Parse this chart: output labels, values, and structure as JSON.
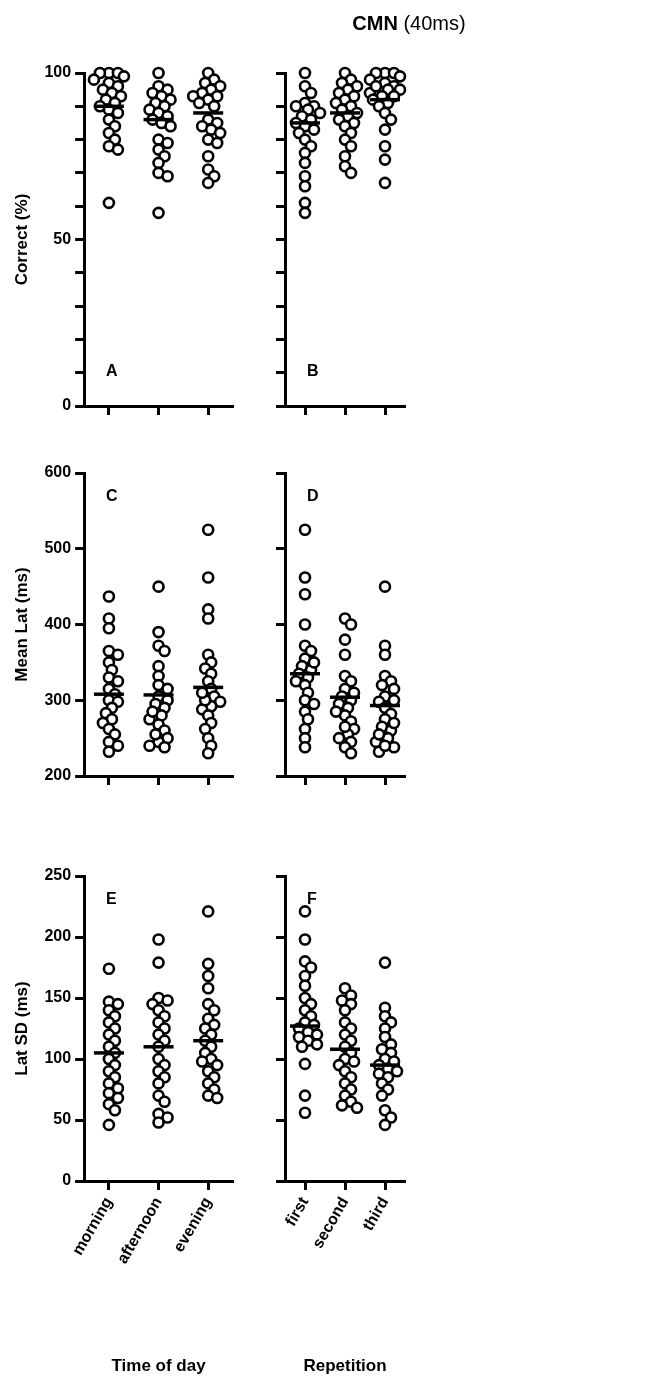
{
  "chart_data": [
    {
      "type": "scatter",
      "ylabel": "Correct (%)",
      "annotations": [
        "A"
      ],
      "categories": [
        "morning",
        "afternoon",
        "evening"
      ],
      "ylim": [
        0,
        100
      ],
      "yticks": [
        0,
        {
          "value": 10,
          "label": null
        },
        {
          "value": 20,
          "label": null
        },
        {
          "value": 30,
          "label": null
        },
        {
          "value": 40,
          "label": null
        },
        50,
        {
          "value": 60,
          "label": null
        },
        {
          "value": 70,
          "label": null
        },
        {
          "value": 80,
          "label": null
        },
        {
          "value": 90,
          "label": null
        },
        100
      ],
      "tick_labels": "y",
      "marker": "circle",
      "legend": false,
      "grid": false,
      "series": [
        {
          "color": "#000000",
          "x": [
            "morning",
            "morning",
            "morning",
            "morning",
            "morning",
            "morning",
            "morning",
            "morning",
            "morning",
            "morning",
            "morning",
            "morning",
            "morning",
            "morning",
            "morning",
            "morning",
            "morning",
            "morning",
            "morning",
            "morning",
            "morning",
            "morning",
            "afternoon",
            "afternoon",
            "afternoon",
            "afternoon",
            "afternoon",
            "afternoon",
            "afternoon",
            "afternoon",
            "afternoon",
            "afternoon",
            "afternoon",
            "afternoon",
            "afternoon",
            "afternoon",
            "afternoon",
            "afternoon",
            "afternoon",
            "afternoon",
            "afternoon",
            "afternoon",
            "afternoon",
            "afternoon",
            "evening",
            "evening",
            "evening",
            "evening",
            "evening",
            "evening",
            "evening",
            "evening",
            "evening",
            "evening",
            "evening",
            "evening",
            "evening",
            "evening",
            "evening",
            "evening",
            "evening",
            "evening",
            "evening",
            "evening",
            "evening",
            "evening"
          ],
          "values": [
            100,
            100,
            100,
            99,
            98,
            97,
            96,
            95,
            94,
            93,
            92,
            91,
            90,
            89,
            88,
            86,
            84,
            82,
            80,
            78,
            77,
            61,
            100,
            96,
            95,
            94,
            93,
            92,
            91,
            90,
            89,
            88,
            87,
            86,
            85,
            84,
            80,
            79,
            77,
            75,
            73,
            70,
            69,
            58,
            100,
            98,
            97,
            96,
            95,
            94,
            93,
            93,
            92,
            91,
            90,
            86,
            85,
            84,
            83,
            82,
            80,
            79,
            75,
            71,
            69,
            67
          ]
        },
        {
          "type": "box",
          "color": "#000000",
          "boxes": [
            {
              "low": 90,
              "q1": 90,
              "median": 90,
              "q3": 90,
              "high": 90
            },
            {
              "low": 86,
              "q1": 86,
              "median": 86,
              "q3": 86,
              "high": 86
            },
            {
              "low": 88,
              "q1": 88,
              "median": 88,
              "q3": 88,
              "high": 88
            }
          ]
        }
      ]
    },
    {
      "type": "scatter",
      "title": "CMN (40ms)",
      "annotations": [
        "B"
      ],
      "categories": [
        "first",
        "second",
        "third"
      ],
      "ylim": [
        0,
        100
      ],
      "yticks": [
        0,
        {
          "value": 10,
          "label": null
        },
        {
          "value": 20,
          "label": null
        },
        {
          "value": 30,
          "label": null
        },
        {
          "value": 40,
          "label": null
        },
        50,
        {
          "value": 60,
          "label": null
        },
        {
          "value": 70,
          "label": null
        },
        {
          "value": 80,
          "label": null
        },
        {
          "value": 90,
          "label": null
        },
        100
      ],
      "tick_labels": false,
      "marker": "circle",
      "legend": false,
      "grid": false,
      "series": [
        {
          "color": "#000000",
          "x": [
            "first",
            "first",
            "first",
            "first",
            "first",
            "first",
            "first",
            "first",
            "first",
            "first",
            "first",
            "first",
            "first",
            "first",
            "first",
            "first",
            "first",
            "first",
            "first",
            "first",
            "first",
            "first",
            "second",
            "second",
            "second",
            "second",
            "second",
            "second",
            "second",
            "second",
            "second",
            "second",
            "second",
            "second",
            "second",
            "second",
            "second",
            "second",
            "second",
            "second",
            "second",
            "second",
            "second",
            "second",
            "third",
            "third",
            "third",
            "third",
            "third",
            "third",
            "third",
            "third",
            "third",
            "third",
            "third",
            "third",
            "third",
            "third",
            "third",
            "third",
            "third",
            "third",
            "third",
            "third",
            "third",
            "third"
          ],
          "values": [
            100,
            96,
            94,
            91,
            90,
            89,
            88,
            87,
            86,
            85,
            84,
            83,
            82,
            80,
            78,
            76,
            73,
            69,
            66,
            61,
            58,
            90,
            100,
            98,
            97,
            96,
            95,
            94,
            93,
            92,
            91,
            90,
            89,
            88,
            87,
            86,
            85,
            84,
            82,
            80,
            78,
            75,
            72,
            70,
            100,
            100,
            100,
            99,
            98,
            97,
            96,
            95,
            94,
            93,
            92,
            91,
            90,
            88,
            86,
            83,
            78,
            74,
            67,
            96,
            95,
            93
          ]
        },
        {
          "type": "box",
          "color": "#000000",
          "boxes": [
            {
              "low": 85,
              "q1": 85,
              "median": 85,
              "q3": 85,
              "high": 85
            },
            {
              "low": 88,
              "q1": 88,
              "median": 88,
              "q3": 88,
              "high": 88
            },
            {
              "low": 92,
              "q1": 92,
              "median": 92,
              "q3": 92,
              "high": 92
            }
          ]
        }
      ]
    },
    {
      "type": "scatter",
      "ylabel": "Mean Lat (ms)",
      "annotations": [
        "C"
      ],
      "categories": [
        "morning",
        "afternoon",
        "evening"
      ],
      "ylim": [
        200,
        600
      ],
      "yticks": [
        200,
        300,
        400,
        500,
        600
      ],
      "tick_labels": "y",
      "marker": "circle",
      "legend": false,
      "grid": false,
      "series": [
        {
          "color": "#000000",
          "x": [
            "morning",
            "morning",
            "morning",
            "morning",
            "morning",
            "morning",
            "morning",
            "morning",
            "morning",
            "morning",
            "morning",
            "morning",
            "morning",
            "morning",
            "morning",
            "morning",
            "morning",
            "morning",
            "morning",
            "morning",
            "morning",
            "morning",
            "afternoon",
            "afternoon",
            "afternoon",
            "afternoon",
            "afternoon",
            "afternoon",
            "afternoon",
            "afternoon",
            "afternoon",
            "afternoon",
            "afternoon",
            "afternoon",
            "afternoon",
            "afternoon",
            "afternoon",
            "afternoon",
            "afternoon",
            "afternoon",
            "afternoon",
            "afternoon",
            "afternoon",
            "afternoon",
            "evening",
            "evening",
            "evening",
            "evening",
            "evening",
            "evening",
            "evening",
            "evening",
            "evening",
            "evening",
            "evening",
            "evening",
            "evening",
            "evening",
            "evening",
            "evening",
            "evening",
            "evening",
            "evening",
            "evening",
            "evening",
            "evening"
          ],
          "values": [
            437,
            408,
            395,
            365,
            360,
            350,
            340,
            330,
            325,
            315,
            308,
            300,
            298,
            290,
            283,
            275,
            270,
            262,
            255,
            245,
            240,
            232,
            450,
            390,
            372,
            365,
            345,
            332,
            320,
            315,
            305,
            300,
            295,
            290,
            280,
            275,
            268,
            260,
            250,
            245,
            240,
            238,
            255,
            285,
            525,
            462,
            420,
            408,
            360,
            350,
            342,
            335,
            325,
            315,
            305,
            298,
            292,
            288,
            280,
            270,
            262,
            250,
            240,
            230,
            300,
            310
          ]
        },
        {
          "type": "box",
          "color": "#000000",
          "boxes": [
            {
              "low": 308,
              "q1": 308,
              "median": 308,
              "q3": 308,
              "high": 308
            },
            {
              "low": 307,
              "q1": 307,
              "median": 307,
              "q3": 307,
              "high": 307
            },
            {
              "low": 317,
              "q1": 317,
              "median": 317,
              "q3": 317,
              "high": 317
            }
          ]
        }
      ]
    },
    {
      "type": "scatter",
      "annotations": [
        "D"
      ],
      "categories": [
        "first",
        "second",
        "third"
      ],
      "ylim": [
        200,
        600
      ],
      "yticks": [
        200,
        300,
        400,
        500,
        600
      ],
      "tick_labels": false,
      "marker": "circle",
      "legend": false,
      "grid": false,
      "series": [
        {
          "color": "#000000",
          "x": [
            "first",
            "first",
            "first",
            "first",
            "first",
            "first",
            "first",
            "first",
            "first",
            "first",
            "first",
            "first",
            "first",
            "first",
            "first",
            "first",
            "first",
            "first",
            "first",
            "first",
            "first",
            "first",
            "second",
            "second",
            "second",
            "second",
            "second",
            "second",
            "second",
            "second",
            "second",
            "second",
            "second",
            "second",
            "second",
            "second",
            "second",
            "second",
            "second",
            "second",
            "second",
            "second",
            "second",
            "second",
            "third",
            "third",
            "third",
            "third",
            "third",
            "third",
            "third",
            "third",
            "third",
            "third",
            "third",
            "third",
            "third",
            "third",
            "third",
            "third",
            "third",
            "third",
            "third",
            "third",
            "third",
            "third"
          ],
          "values": [
            525,
            462,
            440,
            400,
            372,
            365,
            355,
            345,
            340,
            335,
            330,
            325,
            320,
            310,
            300,
            295,
            285,
            275,
            262,
            250,
            238,
            350,
            408,
            400,
            380,
            360,
            332,
            325,
            315,
            305,
            300,
            295,
            290,
            280,
            272,
            262,
            255,
            245,
            238,
            230,
            310,
            285,
            265,
            250,
            450,
            372,
            360,
            332,
            325,
            315,
            305,
            298,
            290,
            282,
            275,
            265,
            260,
            250,
            245,
            238,
            232,
            320,
            300,
            270,
            255,
            240
          ]
        },
        {
          "type": "box",
          "color": "#000000",
          "boxes": [
            {
              "low": 335,
              "q1": 335,
              "median": 335,
              "q3": 335,
              "high": 335
            },
            {
              "low": 304,
              "q1": 304,
              "median": 304,
              "q3": 304,
              "high": 304
            },
            {
              "low": 293,
              "q1": 293,
              "median": 293,
              "q3": 293,
              "high": 293
            }
          ]
        }
      ]
    },
    {
      "type": "scatter",
      "ylabel": "Lat SD (ms)",
      "xlabel": "Time of day",
      "annotations": [
        "E"
      ],
      "categories": [
        "morning",
        "afternoon",
        "evening"
      ],
      "ylim": [
        0,
        250
      ],
      "yticks": [
        0,
        50,
        100,
        150,
        200,
        250
      ],
      "marker": "circle",
      "legend": false,
      "grid": false,
      "series": [
        {
          "color": "#000000",
          "x": [
            "morning",
            "morning",
            "morning",
            "morning",
            "morning",
            "morning",
            "morning",
            "morning",
            "morning",
            "morning",
            "morning",
            "morning",
            "morning",
            "morning",
            "morning",
            "morning",
            "morning",
            "morning",
            "morning",
            "morning",
            "morning",
            "morning",
            "afternoon",
            "afternoon",
            "afternoon",
            "afternoon",
            "afternoon",
            "afternoon",
            "afternoon",
            "afternoon",
            "afternoon",
            "afternoon",
            "afternoon",
            "afternoon",
            "afternoon",
            "afternoon",
            "afternoon",
            "afternoon",
            "afternoon",
            "afternoon",
            "afternoon",
            "afternoon",
            "afternoon",
            "afternoon",
            "evening",
            "evening",
            "evening",
            "evening",
            "evening",
            "evening",
            "evening",
            "evening",
            "evening",
            "evening",
            "evening",
            "evening",
            "evening",
            "evening",
            "evening",
            "evening",
            "evening",
            "evening",
            "evening",
            "evening",
            "evening",
            "evening"
          ],
          "values": [
            174,
            147,
            145,
            140,
            135,
            130,
            125,
            120,
            115,
            110,
            105,
            100,
            95,
            90,
            85,
            80,
            76,
            72,
            68,
            63,
            58,
            46,
            198,
            179,
            150,
            148,
            145,
            140,
            135,
            130,
            125,
            120,
            115,
            110,
            100,
            95,
            90,
            85,
            80,
            70,
            65,
            55,
            52,
            48,
            221,
            178,
            168,
            158,
            145,
            140,
            133,
            128,
            125,
            120,
            115,
            110,
            105,
            100,
            98,
            95,
            90,
            85,
            80,
            75,
            70,
            68
          ]
        },
        {
          "type": "box",
          "color": "#000000",
          "boxes": [
            {
              "low": 105,
              "q1": 105,
              "median": 105,
              "q3": 105,
              "high": 105
            },
            {
              "low": 110,
              "q1": 110,
              "median": 110,
              "q3": 110,
              "high": 110
            },
            {
              "low": 115,
              "q1": 115,
              "median": 115,
              "q3": 115,
              "high": 115
            }
          ]
        }
      ]
    },
    {
      "type": "scatter",
      "xlabel": "Repetition",
      "annotations": [
        "F"
      ],
      "categories": [
        "first",
        "second",
        "third"
      ],
      "ylim": [
        0,
        250
      ],
      "yticks": [
        0,
        50,
        100,
        150,
        200,
        250
      ],
      "tick_labels": "x",
      "marker": "circle",
      "legend": false,
      "grid": false,
      "series": [
        {
          "color": "#000000",
          "x": [
            "first",
            "first",
            "first",
            "first",
            "first",
            "first",
            "first",
            "first",
            "first",
            "first",
            "first",
            "first",
            "first",
            "first",
            "first",
            "first",
            "first",
            "first",
            "first",
            "first",
            "first",
            "first",
            "second",
            "second",
            "second",
            "second",
            "second",
            "second",
            "second",
            "second",
            "second",
            "second",
            "second",
            "second",
            "second",
            "second",
            "second",
            "second",
            "second",
            "second",
            "second",
            "second",
            "second",
            "second",
            "third",
            "third",
            "third",
            "third",
            "third",
            "third",
            "third",
            "third",
            "third",
            "third",
            "third",
            "third",
            "third",
            "third",
            "third",
            "third",
            "third",
            "third",
            "third",
            "third",
            "third",
            "third"
          ],
          "values": [
            221,
            198,
            180,
            175,
            168,
            160,
            150,
            145,
            140,
            135,
            130,
            128,
            125,
            122,
            120,
            118,
            115,
            112,
            110,
            96,
            70,
            56,
            158,
            152,
            148,
            145,
            140,
            130,
            125,
            120,
            115,
            110,
            105,
            100,
            98,
            95,
            90,
            85,
            80,
            75,
            70,
            65,
            62,
            60,
            179,
            142,
            135,
            130,
            125,
            118,
            112,
            108,
            105,
            100,
            98,
            95,
            92,
            90,
            88,
            85,
            80,
            75,
            70,
            58,
            52,
            46
          ]
        },
        {
          "type": "box",
          "color": "#000000",
          "boxes": [
            {
              "low": 127,
              "q1": 127,
              "median": 127,
              "q3": 127,
              "high": 127
            },
            {
              "low": 108,
              "q1": 108,
              "median": 108,
              "q3": 108,
              "high": 108
            },
            {
              "low": 95,
              "q1": 95,
              "median": 95,
              "q3": 95,
              "high": 95
            }
          ]
        }
      ]
    }
  ]
}
